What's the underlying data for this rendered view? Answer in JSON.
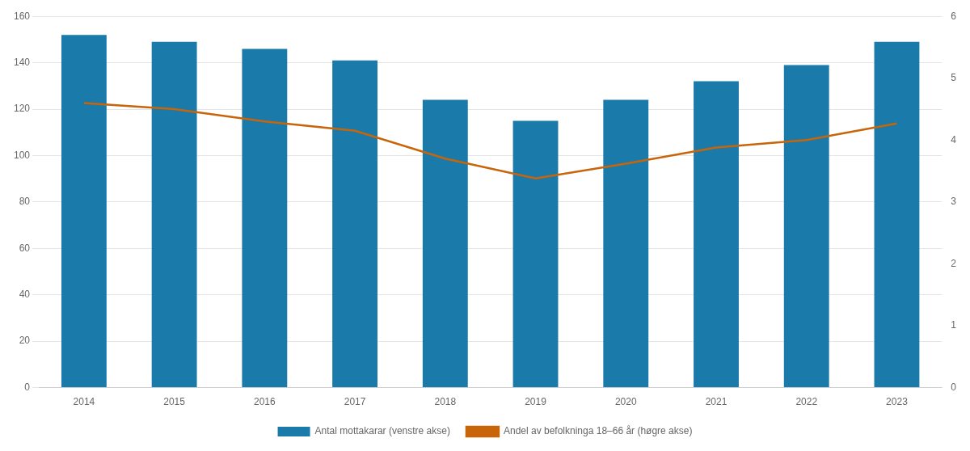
{
  "chart_data": {
    "type": "bar",
    "categories": [
      "2014",
      "2015",
      "2016",
      "2017",
      "2018",
      "2019",
      "2020",
      "2021",
      "2022",
      "2023"
    ],
    "series": [
      {
        "name": "Antal mottakarar (venstre akse)",
        "type": "bar",
        "color": "#1a7aaa",
        "axis": "y",
        "values": [
          152,
          149,
          146,
          141,
          124,
          115,
          124,
          132,
          139,
          149
        ]
      },
      {
        "name": "Andel av befolkninga 18–66 år (høgre akse)",
        "type": "line",
        "color": "#c8650a",
        "axis": "y2",
        "marker": "none",
        "values": [
          4.6,
          4.5,
          4.3,
          4.15,
          3.7,
          3.38,
          3.62,
          3.88,
          4.0,
          4.27
        ]
      }
    ],
    "ylim": [
      0,
      160
    ],
    "yticks": [
      0,
      20,
      40,
      60,
      80,
      100,
      120,
      140,
      160
    ],
    "y2lim": [
      0,
      6
    ],
    "y2ticks": [
      0,
      1,
      2,
      3,
      4,
      5,
      6
    ],
    "grid": true,
    "legend": "bottom"
  }
}
